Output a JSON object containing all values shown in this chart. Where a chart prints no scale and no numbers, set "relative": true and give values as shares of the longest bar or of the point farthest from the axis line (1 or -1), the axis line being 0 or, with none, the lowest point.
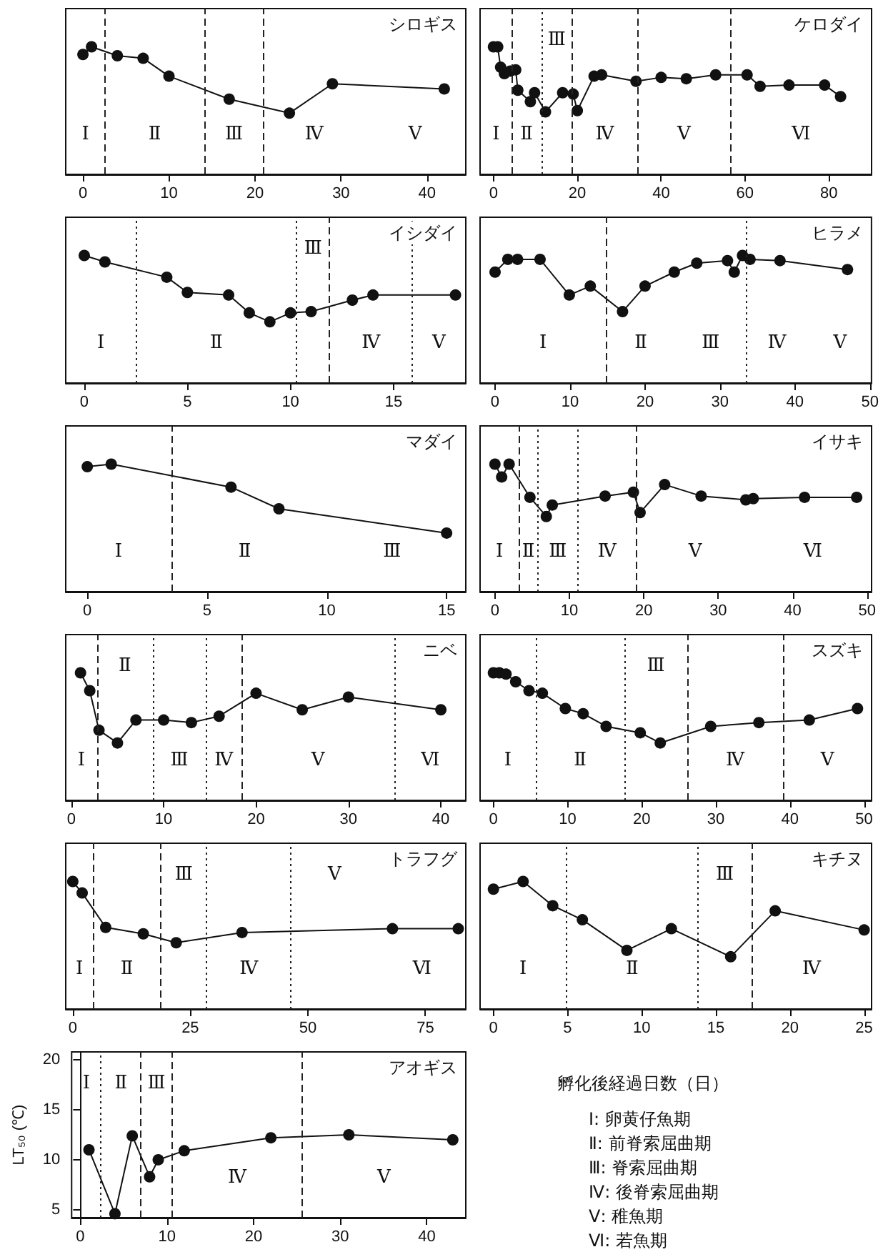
{
  "chart_data": [
    {
      "type": "line",
      "title": "シロギス",
      "relative": true,
      "color": "#111111",
      "marker": "circle",
      "line_style": "solid",
      "xlim": [
        -2,
        44.5
      ],
      "xticks": [
        0,
        10,
        20,
        30,
        40
      ],
      "x": [
        0,
        1,
        4,
        7,
        10,
        17,
        24,
        29,
        42
      ],
      "values": [
        0.94,
        1,
        0.93,
        0.91,
        0.77,
        0.59,
        0.48,
        0.71,
        0.67
      ],
      "ref_lines": [
        {
          "axis": "x",
          "value": 2.6,
          "line_style": "dashed"
        },
        {
          "axis": "x",
          "value": 14.1,
          "line_style": "dashed"
        },
        {
          "axis": "x",
          "value": 21,
          "line_style": "dashed"
        }
      ],
      "annotations": [
        "Ⅰ",
        "Ⅱ",
        "Ⅲ",
        "Ⅳ",
        "Ⅴ"
      ]
    },
    {
      "type": "line",
      "title": "ケロダイ",
      "relative": true,
      "color": "#111111",
      "marker": "circle",
      "line_style": "solid",
      "xlim": [
        -3.2,
        90.2
      ],
      "xticks": [
        0,
        20,
        40,
        60,
        80
      ],
      "x": [
        0,
        1,
        1.7,
        2.6,
        4,
        5.3,
        5.8,
        8.8,
        9.8,
        12.4,
        16.5,
        19,
        20,
        24,
        25.8,
        34,
        40,
        46,
        53,
        60.5,
        63.6,
        70.5,
        79,
        82.8
      ],
      "values": [
        1,
        1,
        0.84,
        0.79,
        0.81,
        0.82,
        0.66,
        0.57,
        0.64,
        0.49,
        0.64,
        0.63,
        0.5,
        0.77,
        0.78,
        0.73,
        0.76,
        0.75,
        0.78,
        0.78,
        0.69,
        0.7,
        0.7,
        0.61
      ],
      "ref_lines": [
        {
          "axis": "x",
          "value": 4.4,
          "line_style": "dashed"
        },
        {
          "axis": "x",
          "value": 11.4,
          "line_style": "dotted"
        },
        {
          "axis": "x",
          "value": 18.8,
          "line_style": "dashed"
        },
        {
          "axis": "x",
          "value": 34.3,
          "line_style": "dashed"
        },
        {
          "axis": "x",
          "value": 56.6,
          "line_style": "dashed"
        }
      ],
      "annotations": [
        "Ⅰ",
        "Ⅱ",
        "Ⅲ",
        "Ⅳ",
        "Ⅴ",
        "Ⅵ"
      ]
    },
    {
      "type": "line",
      "title": "イシダイ",
      "relative": true,
      "color": "#111111",
      "marker": "circle",
      "line_style": "solid",
      "xlim": [
        -0.9,
        18.5
      ],
      "xticks": [
        0,
        5,
        10,
        15
      ],
      "x": [
        0,
        1,
        4,
        5,
        7,
        8,
        9,
        10,
        11,
        13,
        14,
        18
      ],
      "values": [
        1,
        0.95,
        0.83,
        0.71,
        0.69,
        0.55,
        0.48,
        0.55,
        0.56,
        0.65,
        0.69,
        0.69
      ],
      "ref_lines": [
        {
          "axis": "x",
          "value": 2.5,
          "line_style": "dotted"
        },
        {
          "axis": "x",
          "value": 10.3,
          "line_style": "dotted"
        },
        {
          "axis": "x",
          "value": 11.9,
          "line_style": "dashed"
        },
        {
          "axis": "x",
          "value": 15.9,
          "line_style": "dotted"
        }
      ],
      "annotations": [
        "Ⅰ",
        "Ⅱ",
        "Ⅲ",
        "Ⅳ",
        "Ⅴ"
      ]
    },
    {
      "type": "line",
      "title": "ヒラメ",
      "relative": true,
      "color": "#111111",
      "marker": "circle",
      "line_style": "solid",
      "xlim": [
        -2,
        50.2
      ],
      "xticks": [
        0,
        10,
        20,
        30,
        40,
        50
      ],
      "x": [
        0,
        1.7,
        3,
        6,
        9.9,
        12.7,
        17,
        20,
        23.9,
        26.9,
        31,
        31.9,
        33,
        34,
        38,
        47
      ],
      "values": [
        0.87,
        0.97,
        0.97,
        0.97,
        0.69,
        0.76,
        0.56,
        0.76,
        0.87,
        0.94,
        0.96,
        0.87,
        1,
        0.97,
        0.96,
        0.89
      ],
      "ref_lines": [
        {
          "axis": "x",
          "value": 14.8,
          "line_style": "dashed"
        },
        {
          "axis": "x",
          "value": 33.4,
          "line_style": "dotted"
        }
      ],
      "annotations": [
        "Ⅰ",
        "Ⅱ",
        "Ⅲ",
        "Ⅳ",
        "Ⅴ"
      ]
    },
    {
      "type": "line",
      "title": "マダイ",
      "relative": true,
      "color": "#111111",
      "marker": "circle",
      "line_style": "solid",
      "xlim": [
        -0.9,
        15.8
      ],
      "xticks": [
        0,
        5,
        10,
        15
      ],
      "x": [
        0,
        1,
        6,
        8,
        15
      ],
      "values": [
        0.98,
        1,
        0.82,
        0.65,
        0.46
      ],
      "ref_lines": [
        {
          "axis": "x",
          "value": 3.5,
          "line_style": "dashed"
        }
      ],
      "annotations": [
        "Ⅰ",
        "Ⅱ",
        "Ⅲ"
      ]
    },
    {
      "type": "line",
      "title": "イサキ",
      "relative": true,
      "color": "#111111",
      "marker": "circle",
      "line_style": "solid",
      "xlim": [
        -2,
        50.6
      ],
      "xticks": [
        0,
        10,
        20,
        30,
        40,
        50
      ],
      "x": [
        0,
        0.9,
        1.9,
        4.7,
        6.9,
        7.7,
        14.8,
        18.6,
        19.5,
        22.8,
        27.7,
        33.7,
        34.7,
        41.6,
        48.6
      ],
      "values": [
        1,
        0.9,
        1,
        0.74,
        0.59,
        0.68,
        0.75,
        0.78,
        0.62,
        0.84,
        0.75,
        0.72,
        0.73,
        0.74,
        0.74
      ],
      "ref_lines": [
        {
          "axis": "x",
          "value": 3.2,
          "line_style": "dashed"
        },
        {
          "axis": "x",
          "value": 5.8,
          "line_style": "dotted"
        },
        {
          "axis": "x",
          "value": 11.1,
          "line_style": "dotted"
        },
        {
          "axis": "x",
          "value": 19,
          "line_style": "dashed"
        }
      ],
      "annotations": [
        "Ⅰ",
        "Ⅱ",
        "Ⅲ",
        "Ⅳ",
        "Ⅴ",
        "Ⅵ"
      ]
    },
    {
      "type": "line",
      "title": "ニベ",
      "relative": true,
      "color": "#111111",
      "marker": "circle",
      "line_style": "solid",
      "xlim": [
        -0.6,
        42.7
      ],
      "xticks": [
        0,
        10,
        20,
        30,
        40
      ],
      "x": [
        1,
        2,
        3,
        5,
        7,
        10,
        13,
        16,
        20,
        25,
        30,
        40
      ],
      "values": [
        1,
        0.86,
        0.55,
        0.45,
        0.63,
        0.63,
        0.61,
        0.66,
        0.84,
        0.71,
        0.81,
        0.71
      ],
      "ref_lines": [
        {
          "axis": "x",
          "value": 2.8,
          "line_style": "dashed"
        },
        {
          "axis": "x",
          "value": 8.8,
          "line_style": "dotted"
        },
        {
          "axis": "x",
          "value": 14.6,
          "line_style": "dotted"
        },
        {
          "axis": "x",
          "value": 18.4,
          "line_style": "dashed"
        },
        {
          "axis": "x",
          "value": 35,
          "line_style": "dotted"
        }
      ],
      "annotations": [
        "Ⅰ",
        "Ⅱ",
        "Ⅲ",
        "Ⅳ",
        "Ⅴ",
        "Ⅵ"
      ]
    },
    {
      "type": "line",
      "title": "スズキ",
      "relative": true,
      "color": "#111111",
      "marker": "circle",
      "line_style": "solid",
      "xlim": [
        -1.8,
        51
      ],
      "xticks": [
        0,
        10,
        20,
        30,
        40,
        50
      ],
      "x": [
        0,
        0.8,
        1.7,
        3,
        4.8,
        6.6,
        9.7,
        12.1,
        15.2,
        19.8,
        22.5,
        29.3,
        35.8,
        42.6,
        49.1
      ],
      "values": [
        1,
        1,
        0.99,
        0.93,
        0.86,
        0.84,
        0.72,
        0.68,
        0.58,
        0.53,
        0.45,
        0.58,
        0.61,
        0.63,
        0.72
      ],
      "ref_lines": [
        {
          "axis": "x",
          "value": 5.7,
          "line_style": "dotted"
        },
        {
          "axis": "x",
          "value": 17.7,
          "line_style": "dotted"
        },
        {
          "axis": "x",
          "value": 26.1,
          "line_style": "dashed"
        },
        {
          "axis": "x",
          "value": 39.1,
          "line_style": "dashed"
        }
      ],
      "annotations": [
        "Ⅰ",
        "Ⅱ",
        "Ⅲ",
        "Ⅳ",
        "Ⅴ"
      ]
    },
    {
      "type": "line",
      "title": "トラフグ",
      "relative": true,
      "color": "#111111",
      "marker": "circle",
      "line_style": "solid",
      "xlim": [
        -1.5,
        83.6
      ],
      "xticks": [
        0,
        25,
        50,
        75
      ],
      "x": [
        0,
        2,
        7,
        15,
        22,
        36,
        68,
        82
      ],
      "values": [
        1,
        0.91,
        0.64,
        0.59,
        0.52,
        0.6,
        0.63,
        0.63
      ],
      "ref_lines": [
        {
          "axis": "x",
          "value": 4.3,
          "line_style": "dashed"
        },
        {
          "axis": "x",
          "value": 18.7,
          "line_style": "dashed"
        },
        {
          "axis": "x",
          "value": 28.5,
          "line_style": "dotted"
        },
        {
          "axis": "x",
          "value": 46.4,
          "line_style": "dotted"
        }
      ],
      "annotations": [
        "Ⅰ",
        "Ⅱ",
        "Ⅲ",
        "Ⅳ",
        "Ⅴ",
        "Ⅵ"
      ]
    },
    {
      "type": "line",
      "title": "キチヌ",
      "relative": true,
      "color": "#111111",
      "marker": "circle",
      "line_style": "solid",
      "xlim": [
        -0.9,
        25.5
      ],
      "xticks": [
        0,
        5,
        10,
        15,
        20,
        25
      ],
      "x": [
        0,
        2,
        4,
        6,
        9,
        12,
        16,
        19,
        25
      ],
      "values": [
        0.94,
        1,
        0.81,
        0.7,
        0.46,
        0.63,
        0.41,
        0.77,
        0.62
      ],
      "ref_lines": [
        {
          "axis": "x",
          "value": 4.9,
          "line_style": "dotted"
        },
        {
          "axis": "x",
          "value": 13.8,
          "line_style": "dotted"
        },
        {
          "axis": "x",
          "value": 17.4,
          "line_style": "dashed"
        }
      ],
      "annotations": [
        "Ⅰ",
        "Ⅱ",
        "Ⅲ",
        "Ⅳ"
      ]
    },
    {
      "type": "line",
      "title": "アオギス",
      "ylabel": "LT₅₀ (℃)",
      "color": "#111111",
      "marker": "circle",
      "line_style": "solid",
      "xlim": [
        -1,
        44.5
      ],
      "xticks": [
        0,
        10,
        20,
        30,
        40
      ],
      "ylim": [
        4.2,
        20.8
      ],
      "yticks": [
        5,
        10,
        15,
        20
      ],
      "x": [
        1,
        4,
        6,
        8,
        9,
        12,
        22,
        31,
        43
      ],
      "values": [
        11,
        4.6,
        12.4,
        8.3,
        10,
        10.9,
        12.2,
        12.5,
        12
      ],
      "ref_lines": [
        {
          "axis": "x",
          "value": 2.4,
          "line_style": "dotted"
        },
        {
          "axis": "x",
          "value": 7,
          "line_style": "dashed"
        },
        {
          "axis": "x",
          "value": 10.6,
          "line_style": "dashed"
        },
        {
          "axis": "x",
          "value": 25.6,
          "line_style": "dashed"
        }
      ],
      "annotations": [
        "Ⅰ",
        "Ⅱ",
        "Ⅲ",
        "Ⅳ",
        "Ⅴ"
      ]
    },
    {
      "type": "other",
      "title": "孵化後経過日数（日）",
      "annotations": [
        "Ⅰ: 卵黄仔魚期",
        "Ⅱ: 前脊索屈曲期",
        "Ⅲ: 脊索屈曲期",
        "Ⅳ: 後脊索屈曲期",
        "Ⅴ: 稚魚期",
        "Ⅵ: 若魚期"
      ]
    }
  ]
}
